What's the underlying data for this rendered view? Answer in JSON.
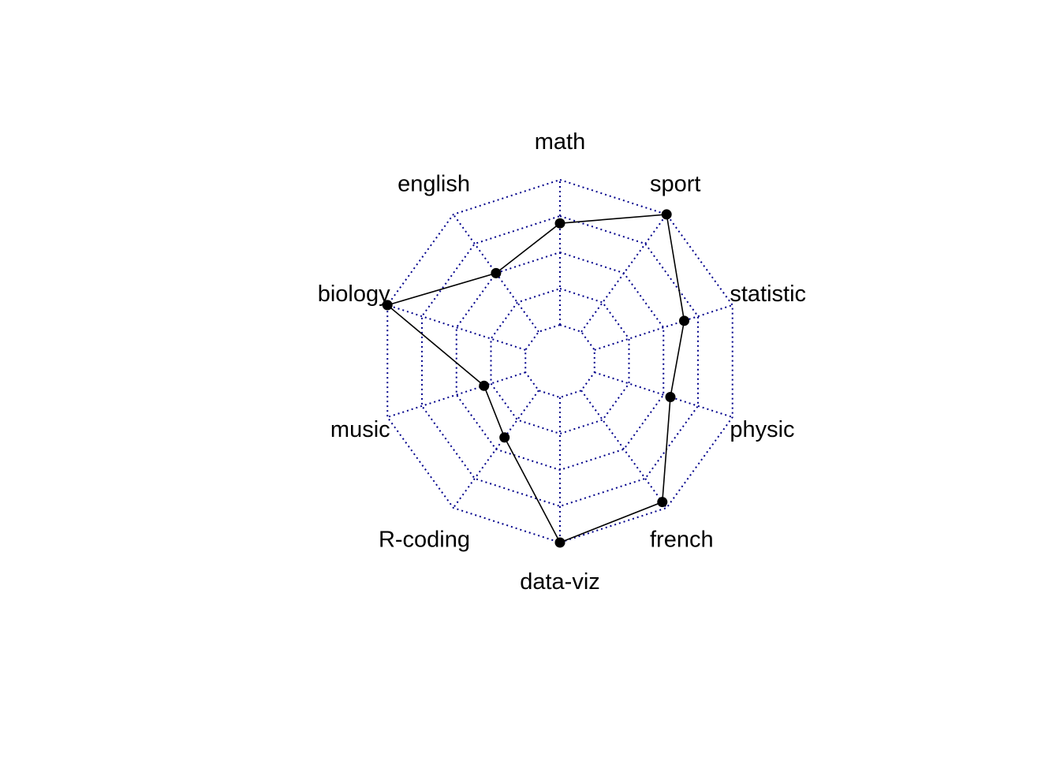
{
  "chart_data": {
    "type": "radar",
    "title": "",
    "axes": [
      "math",
      "sport",
      "statistic",
      "physic",
      "french",
      "data-viz",
      "R-coding",
      "music",
      "biology",
      "english"
    ],
    "series": [
      {
        "values": [
          14,
          20,
          13,
          11,
          19,
          20,
          8,
          6,
          20,
          10
        ],
        "color": "#000000"
      }
    ],
    "range": [
      0,
      20
    ],
    "grid_levels": 5,
    "grid_color": "#00008b",
    "grid_style": "dotted",
    "legend": "none"
  }
}
